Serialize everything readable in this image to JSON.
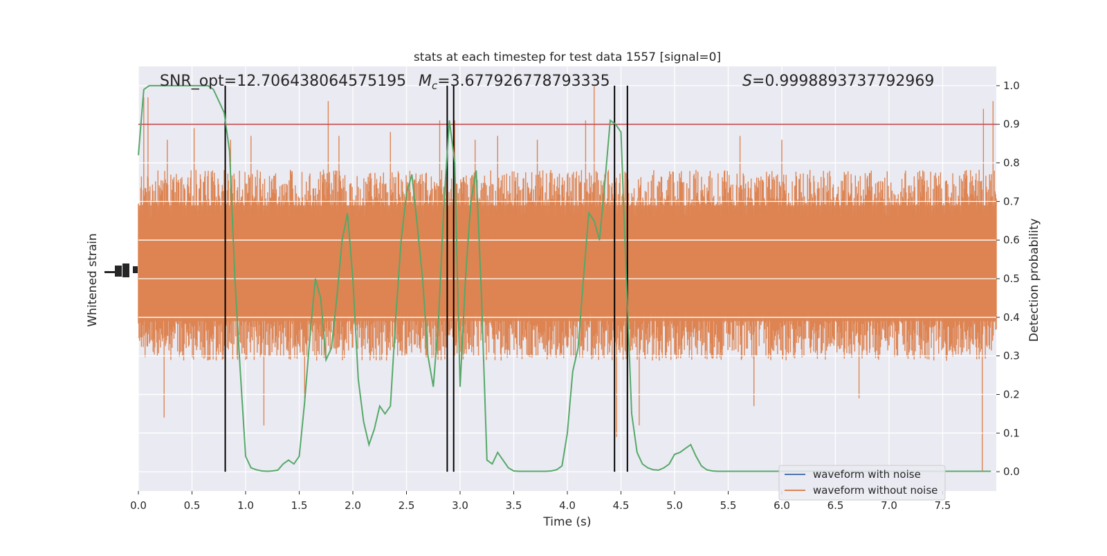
{
  "chart_data": {
    "type": "line",
    "title": "stats at each timestep for test data 1557 [signal=0]",
    "xlabel": "Time (s)",
    "ylabel_left": "Whitened strain",
    "ylabel_right": "Detection probability",
    "xlim": [
      0.0,
      8.0
    ],
    "ylim_right": [
      -0.05,
      1.05
    ],
    "x_ticks": [
      0.0,
      0.5,
      1.0,
      1.5,
      2.0,
      2.5,
      3.0,
      3.5,
      4.0,
      4.5,
      5.0,
      5.5,
      6.0,
      6.5,
      7.0,
      7.5
    ],
    "x_tick_labels": [
      "0.0",
      "0.5",
      "1.0",
      "1.5",
      "2.0",
      "2.5",
      "3.0",
      "3.5",
      "4.0",
      "4.5",
      "5.0",
      "5.5",
      "6.0",
      "6.5",
      "7.0",
      "7.5"
    ],
    "y_ticks_right": [
      0.0,
      0.1,
      0.2,
      0.3,
      0.4,
      0.5,
      0.6,
      0.7,
      0.8,
      0.9,
      1.0
    ],
    "y_tick_labels_right": [
      "0.0",
      "0.1",
      "0.2",
      "0.3",
      "0.4",
      "0.5",
      "0.6",
      "0.7",
      "0.8",
      "0.9",
      "1.0"
    ],
    "grid": true,
    "legend_position": "lower-right",
    "legend": [
      {
        "label": "waveform with noise",
        "color": "#4c72b0"
      },
      {
        "label": "waveform without noise",
        "color": "#dd8452"
      }
    ],
    "annotations": {
      "snr": "SNR_opt=12.706438064575195",
      "mc_symbol": "M",
      "mc_sub": "c",
      "mc_value": "=3.677926778793335",
      "s_symbol": "S",
      "s_value": "=0.9998893737792969"
    },
    "threshold": {
      "y": 0.9,
      "color": "#c44e52"
    },
    "vertical_lines_x": [
      0.81,
      2.88,
      2.94,
      4.44,
      4.56
    ],
    "noise_trace": {
      "color": "#dd8452",
      "band_low": 0.31,
      "band_high": 0.76,
      "spikes": [
        {
          "x": 0.05,
          "y": 0.97
        },
        {
          "x": 0.09,
          "y": 0.97
        },
        {
          "x": 0.24,
          "y": 0.14
        },
        {
          "x": 0.27,
          "y": 0.86
        },
        {
          "x": 0.52,
          "y": 0.89
        },
        {
          "x": 0.86,
          "y": 0.86
        },
        {
          "x": 1.05,
          "y": 0.87
        },
        {
          "x": 1.17,
          "y": 0.12
        },
        {
          "x": 1.55,
          "y": 0.19
        },
        {
          "x": 1.77,
          "y": 0.96
        },
        {
          "x": 1.87,
          "y": 0.87
        },
        {
          "x": 2.35,
          "y": 0.88
        },
        {
          "x": 2.81,
          "y": 0.91
        },
        {
          "x": 2.95,
          "y": 0.91
        },
        {
          "x": 3.14,
          "y": 0.86
        },
        {
          "x": 3.35,
          "y": 0.87
        },
        {
          "x": 3.72,
          "y": 0.86
        },
        {
          "x": 4.17,
          "y": 0.91
        },
        {
          "x": 4.25,
          "y": 1.0
        },
        {
          "x": 4.46,
          "y": 0.09
        },
        {
          "x": 4.67,
          "y": 0.12
        },
        {
          "x": 5.61,
          "y": 0.87
        },
        {
          "x": 5.74,
          "y": 0.17
        },
        {
          "x": 6.0,
          "y": 0.86
        },
        {
          "x": 6.72,
          "y": 0.19
        },
        {
          "x": 7.87,
          "y": 0.0
        },
        {
          "x": 7.88,
          "y": 0.94
        },
        {
          "x": 7.97,
          "y": 0.96
        }
      ]
    },
    "series": [
      {
        "name": "",
        "color": "#55a868",
        "x": [
          0.0,
          0.05,
          0.1,
          0.15,
          0.2,
          0.25,
          0.3,
          0.35,
          0.4,
          0.45,
          0.5,
          0.55,
          0.6,
          0.65,
          0.7,
          0.75,
          0.8,
          0.85,
          0.9,
          0.95,
          1.0,
          1.05,
          1.1,
          1.15,
          1.2,
          1.25,
          1.3,
          1.35,
          1.4,
          1.45,
          1.5,
          1.55,
          1.6,
          1.65,
          1.7,
          1.75,
          1.8,
          1.85,
          1.9,
          1.95,
          2.0,
          2.05,
          2.1,
          2.15,
          2.2,
          2.25,
          2.3,
          2.35,
          2.4,
          2.45,
          2.5,
          2.55,
          2.6,
          2.65,
          2.7,
          2.75,
          2.8,
          2.85,
          2.9,
          2.95,
          3.0,
          3.05,
          3.1,
          3.15,
          3.2,
          3.25,
          3.3,
          3.35,
          3.4,
          3.45,
          3.5,
          3.55,
          3.6,
          3.65,
          3.7,
          3.75,
          3.8,
          3.85,
          3.9,
          3.95,
          4.0,
          4.05,
          4.1,
          4.15,
          4.2,
          4.25,
          4.3,
          4.35,
          4.4,
          4.45,
          4.5,
          4.55,
          4.6,
          4.65,
          4.7,
          4.75,
          4.8,
          4.85,
          4.9,
          4.95,
          5.0,
          5.05,
          5.1,
          5.15,
          5.2,
          5.25,
          5.3,
          5.35,
          5.4,
          5.45,
          5.5,
          5.55,
          5.6,
          5.65,
          5.7,
          5.75,
          5.8,
          5.85,
          5.9,
          5.95,
          6.0,
          6.5,
          7.0,
          7.5,
          7.95
        ],
        "values": [
          0.82,
          0.99,
          1.0,
          1.0,
          1.0,
          1.0,
          1.0,
          1.0,
          1.0,
          1.0,
          1.0,
          1.0,
          1.0,
          1.0,
          0.99,
          0.96,
          0.93,
          0.83,
          0.5,
          0.26,
          0.04,
          0.01,
          0.005,
          0.002,
          0.001,
          0.002,
          0.004,
          0.02,
          0.03,
          0.02,
          0.04,
          0.18,
          0.35,
          0.5,
          0.45,
          0.29,
          0.32,
          0.45,
          0.6,
          0.67,
          0.5,
          0.24,
          0.13,
          0.07,
          0.11,
          0.17,
          0.15,
          0.17,
          0.4,
          0.6,
          0.72,
          0.77,
          0.64,
          0.5,
          0.3,
          0.22,
          0.4,
          0.7,
          0.91,
          0.8,
          0.22,
          0.5,
          0.7,
          0.78,
          0.45,
          0.03,
          0.02,
          0.05,
          0.03,
          0.01,
          0.002,
          0.001,
          0.001,
          0.001,
          0.001,
          0.001,
          0.001,
          0.002,
          0.005,
          0.015,
          0.1,
          0.26,
          0.32,
          0.5,
          0.67,
          0.65,
          0.6,
          0.75,
          0.91,
          0.9,
          0.88,
          0.5,
          0.15,
          0.05,
          0.02,
          0.01,
          0.005,
          0.004,
          0.01,
          0.02,
          0.045,
          0.05,
          0.06,
          0.07,
          0.04,
          0.015,
          0.005,
          0.002,
          0.001,
          0.001,
          0.001,
          0.001,
          0.001,
          0.001,
          0.001,
          0.001,
          0.001,
          0.001,
          0.001,
          0.001,
          0.001,
          0.001,
          0.001,
          0.001,
          0.001
        ]
      }
    ]
  }
}
